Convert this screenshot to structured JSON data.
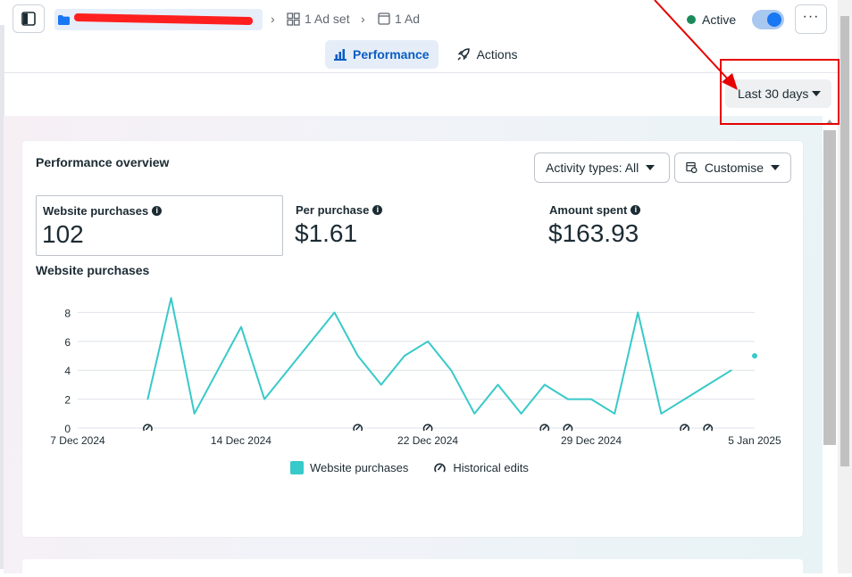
{
  "topbar": {
    "adset_label": "1 Ad set",
    "ad_label": "1 Ad",
    "status_label": "Active",
    "more_label": "···"
  },
  "tabs": [
    {
      "label": "Performance",
      "active": true,
      "icon": "bar-chart-icon"
    },
    {
      "label": "Actions",
      "active": false,
      "icon": "rocket-icon"
    }
  ],
  "date_range": {
    "label": "Last 30 days"
  },
  "overview": {
    "title": "Performance overview",
    "activity_filter": "Activity types: All",
    "customise": "Customise",
    "metrics": [
      {
        "label": "Website purchases",
        "value": "102",
        "selected": true
      },
      {
        "label": "Per purchase",
        "value": "$1.61",
        "selected": false
      },
      {
        "label": "Amount spent",
        "value": "$163.93",
        "selected": false
      }
    ],
    "chart_heading": "Website purchases"
  },
  "legend": {
    "series_label": "Website purchases",
    "edits_label": "Historical edits"
  },
  "colors": {
    "series": "#38c9c9",
    "accent": "#0a5dc2",
    "active_dot": "#1b8a5a",
    "annotation": "#e60000"
  },
  "chart_data": {
    "type": "line",
    "x_tick_labels": [
      "7 Dec 2024",
      "14 Dec 2024",
      "22 Dec 2024",
      "29 Dec 2024",
      "5 Jan 2025"
    ],
    "y_ticks": [
      0,
      2,
      4,
      6,
      8
    ],
    "ylim": [
      0,
      9
    ],
    "grid": true,
    "series": [
      {
        "name": "Website purchases",
        "x": [
          "2024-12-10",
          "2024-12-11",
          "2024-12-12",
          "2024-12-13",
          "2024-12-14",
          "2024-12-15",
          "2024-12-16",
          "2024-12-17",
          "2024-12-18",
          "2024-12-19",
          "2024-12-20",
          "2024-12-21",
          "2024-12-22",
          "2024-12-23",
          "2024-12-24",
          "2024-12-25",
          "2024-12-26",
          "2024-12-27",
          "2024-12-28",
          "2024-12-29",
          "2024-12-30",
          "2024-12-31",
          "2025-01-01",
          "2025-01-02",
          "2025-01-03",
          "2025-01-04",
          "2025-01-05"
        ],
        "y": [
          2,
          9,
          1,
          4,
          7,
          2,
          4,
          6,
          8,
          5,
          3,
          5,
          6,
          4,
          1,
          3,
          1,
          3,
          2,
          2,
          1,
          8,
          1,
          2,
          3,
          4,
          5
        ]
      }
    ],
    "historical_edits": [
      "2024-12-10",
      "2024-12-19",
      "2024-12-22",
      "2024-12-27",
      "2024-12-28",
      "2025-01-02",
      "2025-01-03"
    ]
  }
}
